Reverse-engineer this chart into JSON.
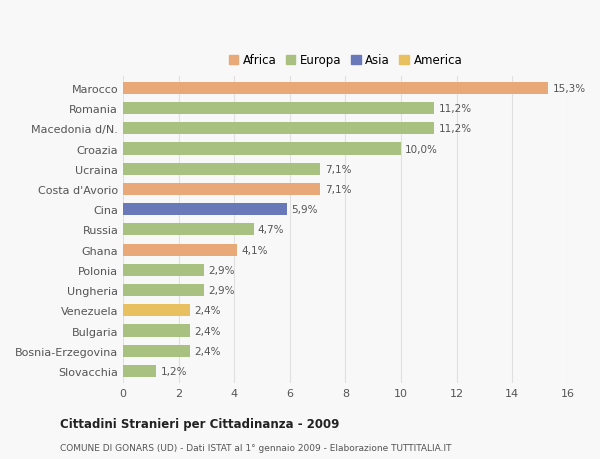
{
  "categories": [
    "Slovacchia",
    "Bosnia-Erzegovina",
    "Bulgaria",
    "Venezuela",
    "Ungheria",
    "Polonia",
    "Ghana",
    "Russia",
    "Cina",
    "Costa d'Avorio",
    "Ucraina",
    "Croazia",
    "Macedonia d/N.",
    "Romania",
    "Marocco"
  ],
  "values": [
    1.2,
    2.4,
    2.4,
    2.4,
    2.9,
    2.9,
    4.1,
    4.7,
    5.9,
    7.1,
    7.1,
    10.0,
    11.2,
    11.2,
    15.3
  ],
  "labels": [
    "1,2%",
    "2,4%",
    "2,4%",
    "2,4%",
    "2,9%",
    "2,9%",
    "4,1%",
    "4,7%",
    "5,9%",
    "7,1%",
    "7,1%",
    "10,0%",
    "11,2%",
    "11,2%",
    "15,3%"
  ],
  "colors": [
    "#a8c080",
    "#a8c080",
    "#a8c080",
    "#e8c060",
    "#a8c080",
    "#a8c080",
    "#e8a878",
    "#a8c080",
    "#6878b8",
    "#e8a878",
    "#a8c080",
    "#a8c080",
    "#a8c080",
    "#a8c080",
    "#e8a878"
  ],
  "legend_labels": [
    "Africa",
    "Europa",
    "Asia",
    "America"
  ],
  "legend_colors": [
    "#e8a878",
    "#a8c080",
    "#6878b8",
    "#e8c060"
  ],
  "xlim": [
    0,
    16
  ],
  "xticks": [
    0,
    2,
    4,
    6,
    8,
    10,
    12,
    14,
    16
  ],
  "title": "Cittadini Stranieri per Cittadinanza - 2009",
  "subtitle": "COMUNE DI GONARS (UD) - Dati ISTAT al 1° gennaio 2009 - Elaborazione TUTTITALIA.IT",
  "bg_color": "#f8f8f8",
  "grid_color": "#e0e0e0",
  "text_color": "#555555",
  "bar_height": 0.6
}
